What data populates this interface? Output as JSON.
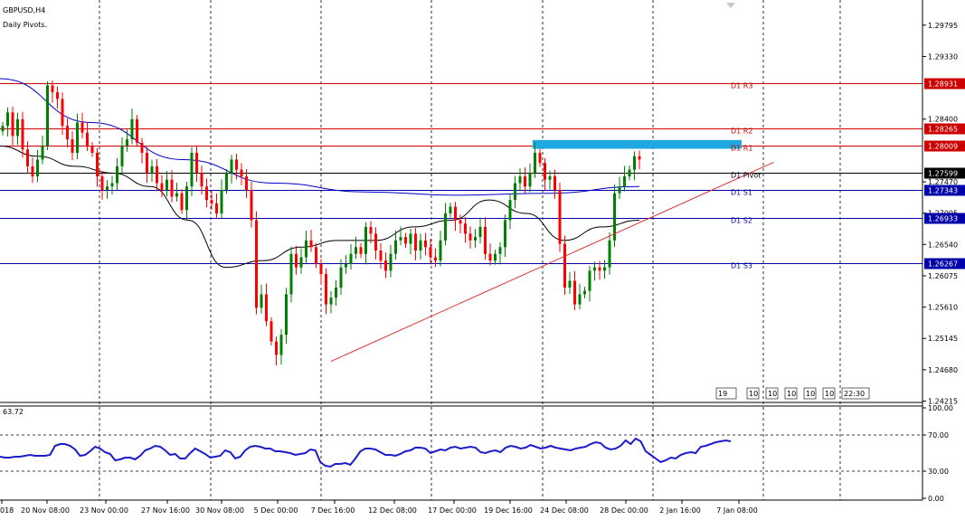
{
  "header": {
    "symbol": "GBPUSD,H4",
    "indicator": "Daily Pivots."
  },
  "colors": {
    "up": "#008000",
    "down": "#ff0000",
    "resistance": "#cc0000",
    "support": "#0000aa",
    "ma_long": "#0000cc",
    "ma_short": "#000000",
    "trendline": "#e03030",
    "zone": "#1ea7e1",
    "rsi": "#1c1ccc",
    "grid": "#000000"
  },
  "chart_data": {
    "type": "candlestick",
    "price_range": [
      1.24195,
      1.30155
    ],
    "price_ticks": [
      "1.29795",
      "1.29330",
      "1.28400",
      "1.27470",
      "1.27005",
      "1.26540",
      "1.26075",
      "1.25610",
      "1.25145",
      "1.24680",
      "1.24215"
    ],
    "x_labels": [
      "018",
      "20 Nov 08:00",
      "23 Nov 00:00",
      "27 Nov 16:00",
      "30 Nov 08:00",
      "5 Dec 00:00",
      "7 Dec 16:00",
      "12 Dec 08:00",
      "17 Dec 00:00",
      "19 Dec 16:00",
      "24 Dec 08:00",
      "28 Dec 00:00",
      "2 Jan 16:00",
      "7 Jan 08:00"
    ],
    "pivots": [
      {
        "name": "D1 R3",
        "value": 1.28931,
        "label": "1.28931",
        "kind": "resistance"
      },
      {
        "name": "D1 R2",
        "value": 1.28265,
        "label": "1.28265",
        "kind": "resistance"
      },
      {
        "name": "D1 R1",
        "value": 1.28009,
        "label": "1.28009",
        "kind": "resistance"
      },
      {
        "name": "D1 Pivot",
        "value": 1.27599,
        "label": "1.27599",
        "kind": "pivot"
      },
      {
        "name": "D1 S1",
        "value": 1.27343,
        "label": "1.27343",
        "kind": "support"
      },
      {
        "name": "D1 S2",
        "value": 1.26933,
        "label": "1.26933",
        "kind": "support"
      },
      {
        "name": "D1 S3",
        "value": 1.26267,
        "label": "1.26267",
        "kind": "support"
      }
    ],
    "current_price": "1.27599",
    "closes": [
      1.283,
      1.285,
      1.2815,
      1.284,
      1.2795,
      1.277,
      1.2755,
      1.278,
      1.28,
      1.289,
      1.288,
      1.287,
      1.283,
      1.281,
      1.279,
      1.2835,
      1.282,
      1.28,
      1.279,
      1.2755,
      1.2735,
      1.274,
      1.2745,
      1.277,
      1.28,
      1.281,
      1.284,
      1.2805,
      1.279,
      1.276,
      1.277,
      1.2745,
      1.2735,
      1.275,
      1.2725,
      1.273,
      1.2705,
      1.274,
      1.279,
      1.276,
      1.274,
      1.272,
      1.2715,
      1.27,
      1.2735,
      1.276,
      1.278,
      1.2765,
      1.2755,
      1.2735,
      1.269,
      1.256,
      1.258,
      1.254,
      1.251,
      1.249,
      1.252,
      1.258,
      1.264,
      1.262,
      1.2635,
      1.266,
      1.265,
      1.2625,
      1.261,
      1.2565,
      1.2575,
      1.259,
      1.262,
      1.2625,
      1.264,
      1.265,
      1.264,
      1.268,
      1.267,
      1.2645,
      1.263,
      1.2615,
      1.264,
      1.266,
      1.2665,
      1.2655,
      1.267,
      1.2645,
      1.266,
      1.265,
      1.2635,
      1.263,
      1.266,
      1.27,
      1.271,
      1.269,
      1.2685,
      1.267,
      1.266,
      1.2665,
      1.268,
      1.264,
      1.263,
      1.264,
      1.265,
      1.269,
      1.272,
      1.2745,
      1.2755,
      1.274,
      1.276,
      1.279,
      1.2775,
      1.275,
      1.2755,
      1.2735,
      1.2655,
      1.259,
      1.26,
      1.2565,
      1.258,
      1.2585,
      1.2615,
      1.262,
      1.2615,
      1.262,
      1.266,
      1.273,
      1.274,
      1.2755,
      1.2765,
      1.2785,
      1.278
    ],
    "ma_long": [
      1.29,
      1.2835,
      1.278,
      1.2745,
      1.2732,
      1.2727,
      1.273,
      1.274
    ],
    "ma_short": [
      1.28,
      1.2785,
      1.277,
      1.276,
      1.274,
      1.269,
      1.262,
      1.263,
      1.265,
      1.266,
      1.266,
      1.268,
      1.269,
      1.272,
      1.27,
      1.266,
      1.268,
      1.269
    ],
    "trendlines": [
      {
        "from": [
          66,
          1.24805
        ],
        "to": [
          155,
          1.2776
        ]
      }
    ],
    "zone": {
      "from_bar": 106,
      "to_bar": 148,
      "high": 1.2809,
      "low": 1.2796
    },
    "info_strip": [
      "19",
      "10",
      "10",
      "10",
      "10",
      "10",
      "22:30"
    ],
    "rsi": {
      "value_label": "63.72",
      "range": [
        0,
        100
      ],
      "ticks": [
        "100.00",
        "70.00",
        "30.00",
        "0.00"
      ],
      "values": [
        46,
        45,
        45,
        46,
        46,
        47,
        48,
        47,
        47,
        47,
        48,
        58,
        60,
        60,
        58,
        54,
        47,
        48,
        52,
        57,
        55,
        51,
        49,
        42,
        43,
        45,
        45,
        43,
        47,
        53,
        55,
        58,
        57,
        53,
        48,
        49,
        44,
        44,
        50,
        55,
        52,
        49,
        45,
        46,
        47,
        53,
        51,
        44,
        46,
        53,
        57,
        58,
        57,
        55,
        55,
        52,
        52,
        51,
        50,
        48,
        49,
        50,
        54,
        53,
        40,
        36,
        35,
        38,
        38,
        39,
        37,
        44,
        52,
        55,
        55,
        54,
        51,
        48,
        48,
        47,
        49,
        52,
        53,
        56,
        56,
        55,
        50,
        52,
        54,
        53,
        56,
        57,
        55,
        56,
        57,
        56,
        51,
        50,
        52,
        53,
        51,
        56,
        58,
        57,
        55,
        56,
        59,
        57,
        55,
        56,
        58,
        56,
        55,
        54,
        53,
        55,
        56,
        57,
        60,
        62,
        61,
        56,
        54,
        55,
        58,
        64,
        60,
        66,
        63,
        52,
        48,
        44,
        40,
        42,
        45,
        44,
        48,
        50,
        51,
        50,
        57,
        58,
        60,
        62,
        63,
        64,
        63
      ]
    }
  }
}
